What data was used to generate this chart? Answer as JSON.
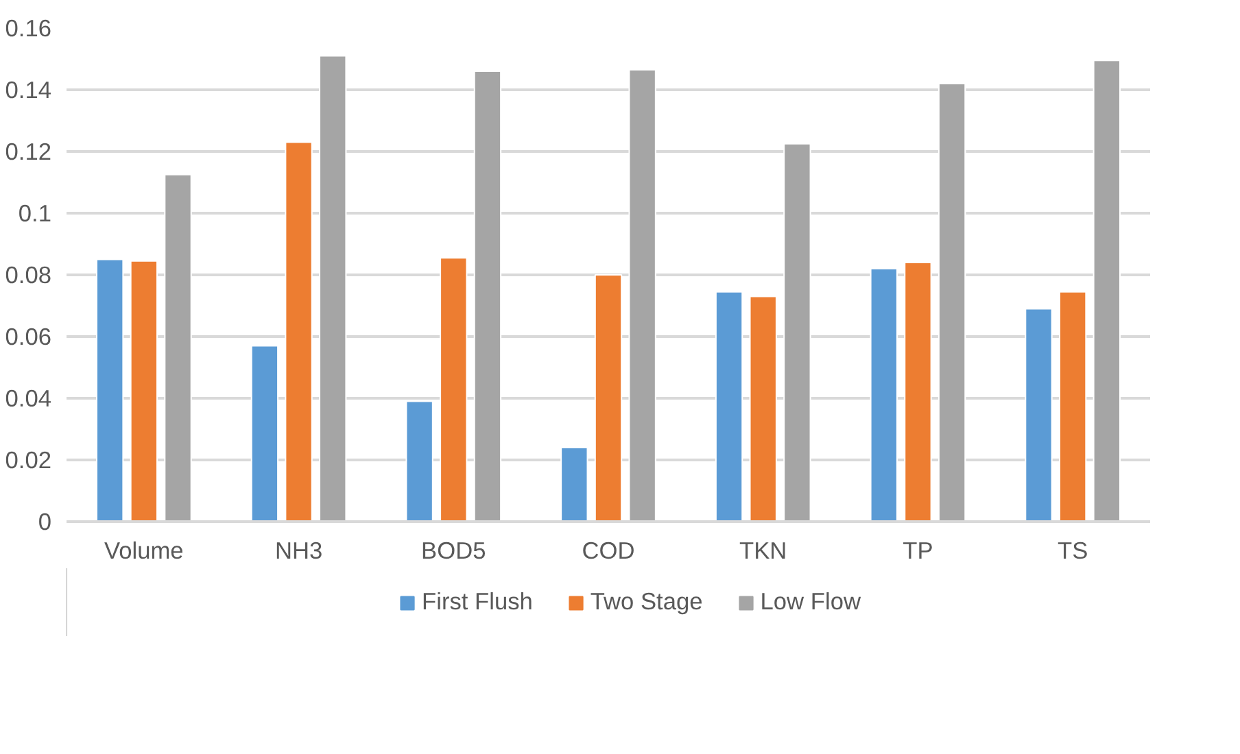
{
  "chart_data": {
    "type": "bar",
    "categories": [
      "Volume",
      "NH3",
      "BOD5",
      "COD",
      "TKN",
      "TP",
      "TS"
    ],
    "series": [
      {
        "name": "First Flush",
        "color": "#5b9bd5",
        "values": [
          0.085,
          0.057,
          0.039,
          0.024,
          0.0745,
          0.082,
          0.069
        ]
      },
      {
        "name": "Two Stage",
        "color": "#ed7d31",
        "values": [
          0.0845,
          0.123,
          0.0855,
          0.08,
          0.073,
          0.084,
          0.0745
        ]
      },
      {
        "name": "Low Flow",
        "color": "#a5a5a5",
        "values": [
          0.1125,
          0.151,
          0.146,
          0.1465,
          0.1225,
          0.142,
          0.1495
        ]
      }
    ],
    "ylim": [
      0,
      0.16
    ],
    "yticks": [
      0,
      0.02,
      0.04,
      0.06,
      0.08,
      0.1,
      0.12,
      0.14,
      0.16
    ],
    "grid": "y",
    "legend": "bottom"
  }
}
